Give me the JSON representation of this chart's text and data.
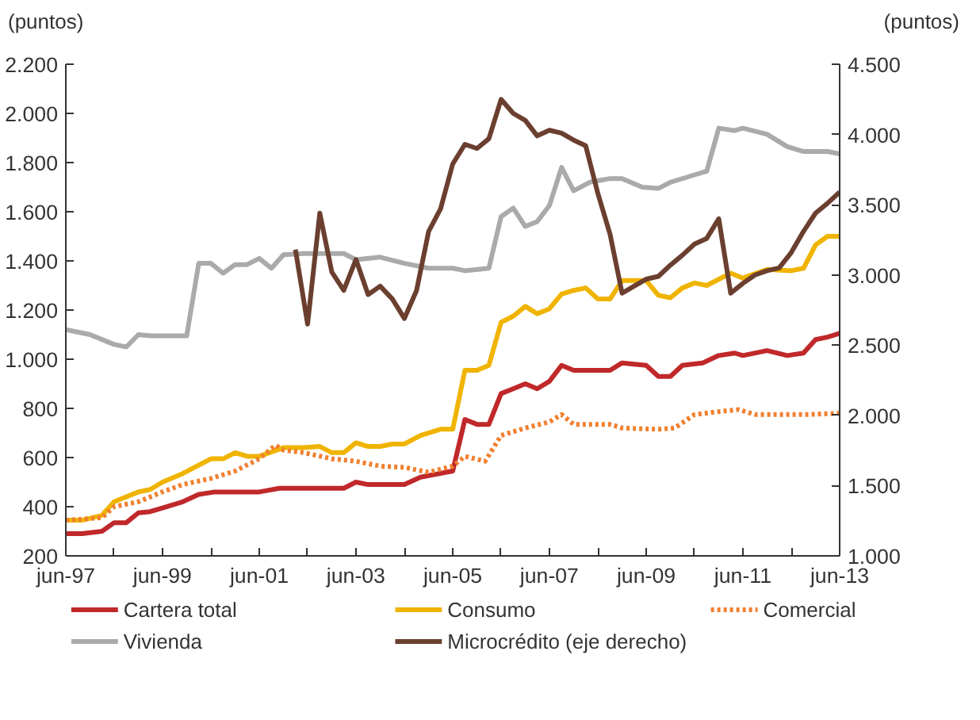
{
  "chart_data": {
    "type": "line",
    "ylabel": "(puntos)",
    "y2label": "(puntos)",
    "xlim": [
      "1997-06",
      "2013-06"
    ],
    "xticks": [
      {
        "value": "1997-06",
        "label": "jun-97"
      },
      {
        "value": "1998-06",
        "label": null
      },
      {
        "value": "1999-06",
        "label": "jun-99"
      },
      {
        "value": "2000-06",
        "label": null
      },
      {
        "value": "2001-06",
        "label": "jun-01"
      },
      {
        "value": "2002-06",
        "label": null
      },
      {
        "value": "2003-06",
        "label": "jun-03"
      },
      {
        "value": "2004-06",
        "label": null
      },
      {
        "value": "2005-06",
        "label": "jun-05"
      },
      {
        "value": "2006-06",
        "label": null
      },
      {
        "value": "2007-06",
        "label": "jun-07"
      },
      {
        "value": "2008-06",
        "label": null
      },
      {
        "value": "2009-06",
        "label": "jun-09"
      },
      {
        "value": "2010-06",
        "label": null
      },
      {
        "value": "2011-06",
        "label": "jun-11"
      },
      {
        "value": "2012-06",
        "label": null
      },
      {
        "value": "2013-06",
        "label": "jun-13"
      }
    ],
    "ylim": [
      200,
      2200
    ],
    "yticks": [
      200,
      400,
      600,
      800,
      {
        "value": 1000,
        "label": "1.000"
      },
      {
        "value": 1200,
        "label": "1.200"
      },
      {
        "value": 1400,
        "label": "1.400"
      },
      {
        "value": 1600,
        "label": "1.600"
      },
      {
        "value": 1800,
        "label": "1.800"
      },
      {
        "value": 2000,
        "label": "2.000"
      },
      {
        "value": 2200,
        "label": "2.200"
      }
    ],
    "y2lim": [
      1000,
      4500
    ],
    "y2ticks": [
      {
        "value": 1000,
        "label": "1.000"
      },
      {
        "value": 1500,
        "label": "1.500"
      },
      {
        "value": 2000,
        "label": "2.000"
      },
      {
        "value": 2500,
        "label": "2.500"
      },
      {
        "value": 3000,
        "label": "3.000"
      },
      {
        "value": 3500,
        "label": "3.500"
      },
      {
        "value": 4000,
        "label": "4.000"
      },
      {
        "value": 4500,
        "label": "4.500"
      }
    ],
    "grid": false,
    "legend": "bottom",
    "series": [
      {
        "name": "Cartera total",
        "color": "#c0282a",
        "x": [
          "1997-06",
          "1997-10",
          "1998-03",
          "1998-06",
          "1998-09",
          "1998-12",
          "1999-03",
          "1999-06",
          "1999-11",
          "2000-03",
          "2000-07",
          "2001-06",
          "2001-11",
          "2003-03",
          "2003-06",
          "2003-09",
          "2004-06",
          "2004-10",
          "2005-06",
          "2005-09",
          "2005-12",
          "2006-03",
          "2006-06",
          "2006-09",
          "2006-12",
          "2007-03",
          "2007-06",
          "2007-09",
          "2007-12",
          "2008-09",
          "2008-12",
          "2009-06",
          "2009-09",
          "2009-12",
          "2010-03",
          "2010-08",
          "2010-12",
          "2011-04",
          "2011-06",
          "2011-12",
          "2012-05",
          "2012-09",
          "2012-12",
          "2013-03",
          "2013-06"
        ],
        "values": [
          290,
          290,
          300,
          335,
          335,
          375,
          380,
          395,
          420,
          450,
          460,
          460,
          475,
          475,
          500,
          490,
          490,
          520,
          545,
          755,
          735,
          735,
          860,
          880,
          900,
          880,
          910,
          975,
          955,
          955,
          985,
          975,
          930,
          930,
          975,
          985,
          1015,
          1025,
          1015,
          1035,
          1015,
          1025,
          1080,
          1090,
          1105
        ]
      },
      {
        "name": "Consumo",
        "color": "#f0b400",
        "x": [
          "1997-06",
          "1997-10",
          "1998-03",
          "1998-06",
          "1998-12",
          "1999-03",
          "1999-06",
          "1999-11",
          "2000-06",
          "2000-09",
          "2000-12",
          "2001-03",
          "2001-06",
          "2001-12",
          "2002-05",
          "2002-09",
          "2002-12",
          "2003-03",
          "2003-06",
          "2003-09",
          "2003-12",
          "2004-03",
          "2004-06",
          "2004-10",
          "2005-03",
          "2005-06",
          "2005-09",
          "2005-12",
          "2006-03",
          "2006-06",
          "2006-09",
          "2006-12",
          "2007-03",
          "2007-06",
          "2007-09",
          "2007-12",
          "2008-03",
          "2008-06",
          "2008-09",
          "2008-12",
          "2009-06",
          "2009-09",
          "2009-12",
          "2010-03",
          "2010-06",
          "2010-09",
          "2011-03",
          "2011-06",
          "2011-12",
          "2012-06",
          "2012-09",
          "2012-12",
          "2013-03",
          "2013-06"
        ],
        "values": [
          345,
          345,
          365,
          420,
          460,
          470,
          500,
          535,
          595,
          595,
          620,
          605,
          605,
          640,
          640,
          645,
          620,
          620,
          660,
          645,
          645,
          655,
          655,
          690,
          715,
          715,
          955,
          955,
          975,
          1150,
          1175,
          1215,
          1185,
          1205,
          1265,
          1280,
          1290,
          1245,
          1245,
          1320,
          1320,
          1260,
          1250,
          1290,
          1310,
          1300,
          1350,
          1330,
          1365,
          1360,
          1370,
          1465,
          1500,
          1500
        ]
      },
      {
        "name": "Comercial",
        "color": "#f08030",
        "line_style": "dotted",
        "x": [
          "1997-06",
          "1998-03",
          "1998-06",
          "1998-12",
          "1999-06",
          "1999-11",
          "2000-06",
          "2000-12",
          "2001-06",
          "2001-10",
          "2001-12",
          "2002-05",
          "2002-12",
          "2003-06",
          "2003-12",
          "2004-06",
          "2004-12",
          "2005-06",
          "2005-09",
          "2006-02",
          "2006-06",
          "2006-12",
          "2007-06",
          "2007-09",
          "2007-12",
          "2008-09",
          "2008-12",
          "2009-09",
          "2010-01",
          "2010-06",
          "2010-11",
          "2011-05",
          "2011-09",
          "2012-10",
          "2013-06"
        ],
        "values": [
          345,
          355,
          400,
          420,
          460,
          490,
          515,
          545,
          595,
          650,
          630,
          620,
          595,
          585,
          565,
          560,
          540,
          565,
          605,
          585,
          690,
          720,
          745,
          775,
          735,
          735,
          720,
          715,
          720,
          775,
          785,
          795,
          775,
          775,
          780
        ]
      },
      {
        "name": "Vivienda",
        "color": "#aaaaaa",
        "x": [
          "1997-06",
          "1997-12",
          "1998-06",
          "1998-09",
          "1998-12",
          "1999-03",
          "1999-12",
          "2000-03",
          "2000-06",
          "2000-09",
          "2000-12",
          "2001-03",
          "2001-06",
          "2001-09",
          "2001-12",
          "2002-05",
          "2003-03",
          "2003-06",
          "2003-12",
          "2004-06",
          "2004-12",
          "2005-06",
          "2005-09",
          "2006-03",
          "2006-06",
          "2006-09",
          "2006-12",
          "2007-03",
          "2007-06",
          "2007-09",
          "2007-12",
          "2008-04",
          "2008-09",
          "2008-12",
          "2009-05",
          "2009-09",
          "2009-12",
          "2010-06",
          "2010-09",
          "2010-12",
          "2011-04",
          "2011-06",
          "2011-12",
          "2012-05",
          "2012-09",
          "2013-03",
          "2013-06"
        ],
        "values": [
          1120,
          1100,
          1060,
          1050,
          1100,
          1095,
          1095,
          1390,
          1390,
          1350,
          1385,
          1385,
          1410,
          1370,
          1425,
          1430,
          1430,
          1405,
          1415,
          1390,
          1370,
          1370,
          1360,
          1370,
          1580,
          1615,
          1540,
          1560,
          1625,
          1780,
          1685,
          1720,
          1735,
          1735,
          1700,
          1695,
          1720,
          1750,
          1765,
          1940,
          1930,
          1940,
          1915,
          1865,
          1845,
          1845,
          1835
        ]
      },
      {
        "name": "Microcrédito (eje derecho)",
        "color": "#6b3f2f",
        "axis": "y2",
        "x": [
          "2002-03",
          "2002-06",
          "2002-09",
          "2002-12",
          "2003-03",
          "2003-06",
          "2003-09",
          "2003-12",
          "2004-03",
          "2004-06",
          "2004-09",
          "2004-12",
          "2005-03",
          "2005-06",
          "2005-09",
          "2005-12",
          "2006-03",
          "2006-06",
          "2006-09",
          "2006-12",
          "2007-03",
          "2007-06",
          "2007-09",
          "2007-12",
          "2008-03",
          "2008-06",
          "2008-09",
          "2008-12",
          "2009-03",
          "2009-06",
          "2009-09",
          "2009-12",
          "2010-03",
          "2010-06",
          "2010-09",
          "2010-12",
          "2011-03",
          "2011-06",
          "2011-09",
          "2011-12",
          "2012-03",
          "2012-06",
          "2012-09",
          "2012-12",
          "2013-03",
          "2013-06"
        ],
        "values": [
          3180,
          2650,
          3440,
          3020,
          2890,
          3110,
          2860,
          2920,
          2830,
          2690,
          2890,
          3310,
          3470,
          3790,
          3930,
          3900,
          3970,
          4250,
          4150,
          4100,
          3990,
          4030,
          4010,
          3960,
          3920,
          3580,
          3290,
          2870,
          2920,
          2970,
          2990,
          3070,
          3140,
          3220,
          3260,
          3400,
          2870,
          2940,
          3000,
          3030,
          3050,
          3160,
          3310,
          3440,
          3510,
          3590
        ]
      }
    ]
  }
}
